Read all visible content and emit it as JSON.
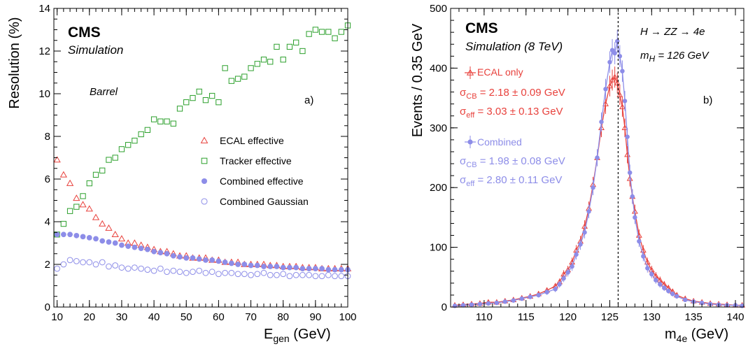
{
  "chart_data": [
    {
      "type": "scatter",
      "panel": "a)",
      "xlabel": "E_gen (GeV)",
      "xlabel_main": "E",
      "xlabel_sub": "gen",
      "xlabel_unit": " (GeV)",
      "ylabel": "Resolution (%)",
      "xlim": [
        9,
        100
      ],
      "ylim": [
        0,
        14
      ],
      "xticks": [
        10,
        20,
        30,
        40,
        50,
        60,
        70,
        80,
        90,
        100
      ],
      "yticks": [
        0,
        2,
        4,
        6,
        8,
        10,
        12,
        14
      ],
      "cms_label": "CMS",
      "sim_label": "Simulation",
      "region_label": "Barrel",
      "legend_placement": "right-middle",
      "series": [
        {
          "name": "ECAL effective",
          "marker": "triangle-open",
          "color": "#e8413c",
          "x": [
            10,
            12,
            14,
            16,
            18,
            20,
            22,
            24,
            26,
            28,
            30,
            32,
            34,
            36,
            38,
            40,
            42,
            44,
            46,
            48,
            50,
            52,
            54,
            56,
            58,
            60,
            62,
            64,
            66,
            68,
            70,
            72,
            74,
            76,
            78,
            80,
            82,
            84,
            86,
            88,
            90,
            92,
            94,
            96,
            98,
            100
          ],
          "y": [
            6.9,
            6.2,
            5.8,
            5.1,
            4.8,
            4.6,
            4.2,
            3.9,
            3.7,
            3.4,
            3.2,
            3.0,
            3.0,
            2.9,
            2.8,
            2.7,
            2.6,
            2.6,
            2.5,
            2.4,
            2.4,
            2.3,
            2.3,
            2.3,
            2.2,
            2.2,
            2.1,
            2.1,
            2.1,
            2.0,
            2.0,
            2.0,
            2.0,
            1.95,
            1.95,
            1.9,
            1.9,
            1.9,
            1.85,
            1.85,
            1.85,
            1.8,
            1.8,
            1.8,
            1.8,
            1.8
          ]
        },
        {
          "name": "Tracker effective",
          "marker": "square-open",
          "color": "#2ca02c",
          "x": [
            10,
            12,
            14,
            16,
            18,
            20,
            22,
            24,
            26,
            28,
            30,
            32,
            34,
            36,
            38,
            40,
            42,
            44,
            46,
            48,
            50,
            52,
            54,
            56,
            58,
            60,
            62,
            64,
            66,
            68,
            70,
            72,
            74,
            76,
            78,
            80,
            82,
            84,
            86,
            88,
            90,
            92,
            94,
            96,
            98,
            100
          ],
          "y": [
            3.4,
            3.9,
            4.5,
            4.7,
            5.2,
            5.8,
            6.2,
            6.4,
            6.9,
            7.0,
            7.4,
            7.6,
            7.8,
            8.1,
            8.3,
            8.8,
            8.7,
            8.7,
            8.6,
            9.3,
            9.6,
            9.8,
            10.1,
            9.7,
            9.9,
            9.6,
            11.2,
            10.6,
            10.7,
            10.8,
            11.2,
            11.4,
            11.6,
            11.5,
            12.2,
            11.6,
            12.2,
            12.4,
            12.0,
            12.8,
            13.0,
            12.9,
            12.9,
            12.6,
            12.9,
            13.2
          ]
        },
        {
          "name": "Combined effective",
          "marker": "circle-filled",
          "color": "#8d8de8",
          "x": [
            10,
            12,
            14,
            16,
            18,
            20,
            22,
            24,
            26,
            28,
            30,
            32,
            34,
            36,
            38,
            40,
            42,
            44,
            46,
            48,
            50,
            52,
            54,
            56,
            58,
            60,
            62,
            64,
            66,
            68,
            70,
            72,
            74,
            76,
            78,
            80,
            82,
            84,
            86,
            88,
            90,
            92,
            94,
            96,
            98,
            100
          ],
          "y": [
            3.4,
            3.4,
            3.4,
            3.35,
            3.3,
            3.25,
            3.2,
            3.1,
            3.05,
            3.0,
            2.9,
            2.85,
            2.8,
            2.75,
            2.7,
            2.6,
            2.55,
            2.5,
            2.4,
            2.35,
            2.3,
            2.3,
            2.25,
            2.2,
            2.2,
            2.15,
            2.1,
            2.05,
            2.0,
            2.0,
            1.95,
            1.95,
            1.9,
            1.9,
            1.9,
            1.85,
            1.85,
            1.85,
            1.8,
            1.8,
            1.8,
            1.8,
            1.75,
            1.75,
            1.75,
            1.75
          ]
        },
        {
          "name": "Combined Gaussian",
          "marker": "circle-open",
          "color": "#8d8de8",
          "x": [
            10,
            12,
            14,
            16,
            18,
            20,
            22,
            24,
            26,
            28,
            30,
            32,
            34,
            36,
            38,
            40,
            42,
            44,
            46,
            48,
            50,
            52,
            54,
            56,
            58,
            60,
            62,
            64,
            66,
            68,
            70,
            72,
            74,
            76,
            78,
            80,
            82,
            84,
            86,
            88,
            90,
            92,
            94,
            96,
            98,
            100
          ],
          "y": [
            1.8,
            2.0,
            2.2,
            2.15,
            2.1,
            2.1,
            2.0,
            2.1,
            1.9,
            1.95,
            1.85,
            1.8,
            1.85,
            1.8,
            1.75,
            1.7,
            1.8,
            1.65,
            1.7,
            1.65,
            1.6,
            1.65,
            1.7,
            1.6,
            1.65,
            1.55,
            1.6,
            1.6,
            1.55,
            1.55,
            1.5,
            1.55,
            1.6,
            1.5,
            1.5,
            1.55,
            1.45,
            1.5,
            1.5,
            1.5,
            1.45,
            1.45,
            1.5,
            1.45,
            1.45,
            1.45
          ]
        }
      ]
    },
    {
      "type": "scatter",
      "panel": "b)",
      "xlabel": "m_4e (GeV)",
      "xlabel_main": "m",
      "xlabel_sub": "4e",
      "xlabel_unit": " (GeV)",
      "ylabel": "Events / 0.35 GeV",
      "xlim": [
        106,
        141
      ],
      "ylim": [
        0,
        500
      ],
      "xticks": [
        110,
        115,
        120,
        125,
        130,
        135,
        140
      ],
      "yticks": [
        0,
        100,
        200,
        300,
        400,
        500
      ],
      "cms_label": "CMS",
      "sim_label": "Simulation (8 TeV)",
      "process_label": "H → ZZ → 4e",
      "mass_label": "m_H = 126 GeV",
      "mass_label_main": "m",
      "mass_label_sub": "H",
      "mass_label_value": " = 126 GeV",
      "vertical_line_x": 126,
      "ecal_sigma_cb": "2.18 ± 0.09 GeV",
      "ecal_sigma_eff": "3.03 ± 0.13 GeV",
      "comb_sigma_cb": "1.98 ± 0.08 GeV",
      "comb_sigma_eff": "2.80 ± 0.11 GeV",
      "sigma_symbol": "σ",
      "sub_cb": "CB",
      "sub_eff": "eff",
      "eq": " = ",
      "series": [
        {
          "name": "ECAL only",
          "marker": "triangle-open",
          "color": "#e8413c",
          "x": [
            106.5,
            107.5,
            108.5,
            109.5,
            110.5,
            111.5,
            112.5,
            113.5,
            114.5,
            115.5,
            116.5,
            117.5,
            118.5,
            119.0,
            119.5,
            120.0,
            120.5,
            121.0,
            121.5,
            122.0,
            122.5,
            123.0,
            123.5,
            124.0,
            124.5,
            125.0,
            125.3,
            125.6,
            125.9,
            126.2,
            126.5,
            126.8,
            127.1,
            127.4,
            127.7,
            128.0,
            128.5,
            129.0,
            129.5,
            130.0,
            130.5,
            131.0,
            131.5,
            132.0,
            132.5,
            133.0,
            134.0,
            135.0,
            136.0,
            137.0,
            138.0,
            139.0,
            140.0,
            140.8
          ],
          "y": [
            3,
            4,
            5,
            6,
            8,
            8,
            10,
            12,
            15,
            18,
            22,
            28,
            35,
            42,
            55,
            62,
            75,
            95,
            110,
            135,
            165,
            205,
            250,
            300,
            340,
            370,
            380,
            385,
            375,
            355,
            335,
            300,
            255,
            215,
            185,
            160,
            120,
            95,
            75,
            62,
            52,
            45,
            38,
            32,
            26,
            20,
            14,
            10,
            8,
            6,
            5,
            4,
            3,
            3
          ]
        },
        {
          "name": "Combined",
          "marker": "circle-filled",
          "color": "#8d8de8",
          "x": [
            106.5,
            107.5,
            108.5,
            109.5,
            110.5,
            111.5,
            112.5,
            113.5,
            114.5,
            115.5,
            116.5,
            117.5,
            118.5,
            119.0,
            119.5,
            120.0,
            120.5,
            121.0,
            121.5,
            122.0,
            122.5,
            123.0,
            123.5,
            124.0,
            124.5,
            125.0,
            125.3,
            125.6,
            125.9,
            126.2,
            126.5,
            126.8,
            127.1,
            127.4,
            127.7,
            128.0,
            128.5,
            129.0,
            129.5,
            130.0,
            130.5,
            131.0,
            131.5,
            132.0,
            132.5,
            133.0,
            134.0,
            135.0,
            136.0,
            137.0,
            138.0,
            139.0,
            140.0,
            140.8
          ],
          "y": [
            2,
            3,
            4,
            5,
            6,
            7,
            9,
            11,
            14,
            17,
            20,
            25,
            30,
            38,
            48,
            58,
            68,
            88,
            105,
            125,
            160,
            200,
            250,
            310,
            365,
            410,
            430,
            425,
            445,
            420,
            395,
            345,
            285,
            225,
            185,
            150,
            110,
            85,
            65,
            55,
            45,
            38,
            32,
            27,
            22,
            18,
            12,
            9,
            7,
            5,
            4,
            3,
            3,
            2
          ]
        }
      ]
    }
  ]
}
